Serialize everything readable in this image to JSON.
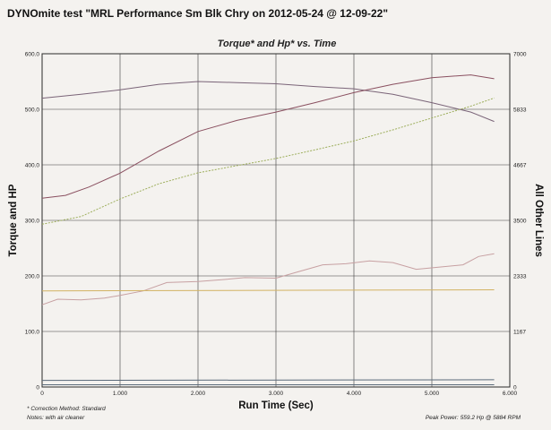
{
  "page_title": "DYNOmite test \"MRL Performance Sm Blk Chry on 2012-05-24 @ 12-09-22\"",
  "footnotes": {
    "correction": "* Correction Method: Standard",
    "notes": "Notes:  with air cleaner",
    "peak_power_label": "Peak Power:",
    "peak_power_value": "559.2 Hp @ 5884 RPM"
  },
  "colors": {
    "background": "#f4f2ef",
    "grid": "#3a3a3a",
    "torque": "#7a6478",
    "hp": "#8a5060",
    "rpm": "#9cad5a",
    "afr": "#c7a0a2",
    "flat": "#d2b262",
    "bottom": "#5a6a7a"
  },
  "chart_data": {
    "type": "line",
    "title": "Torque* and Hp* vs. Time",
    "xlabel": "Run Time (Sec)",
    "ylabel": "Torque and HP",
    "y2label": "All Other Lines",
    "xlim": [
      0,
      6
    ],
    "ylim": [
      0,
      600
    ],
    "y2lim": [
      0,
      7000
    ],
    "grid": true,
    "x_ticks": [
      "0",
      "1.000",
      "2.000",
      "3.000",
      "4.000",
      "5.000",
      "6.000"
    ],
    "y_ticks": [
      "0",
      "100.0",
      "200.0",
      "300.0",
      "400.0",
      "500.0",
      "600.0"
    ],
    "y2_ticks": [
      "0",
      "1167",
      "2333",
      "3500",
      "4667",
      "5833",
      "7000"
    ],
    "series": [
      {
        "name": "",
        "axis": "left",
        "color_key": "torque",
        "x": [
          0,
          0.5,
          1.0,
          1.5,
          2.0,
          2.5,
          3.0,
          3.5,
          4.0,
          4.5,
          5.0,
          5.5,
          5.8
        ],
        "y": [
          520,
          527,
          535,
          545,
          550,
          548,
          546,
          541,
          537,
          527,
          512,
          495,
          478
        ]
      },
      {
        "name": "",
        "axis": "left",
        "color_key": "hp",
        "x": [
          0,
          0.3,
          0.6,
          1.0,
          1.5,
          2.0,
          2.5,
          3.0,
          3.5,
          4.0,
          4.5,
          5.0,
          5.5,
          5.8
        ],
        "y": [
          340,
          345,
          360,
          385,
          425,
          460,
          480,
          495,
          512,
          530,
          545,
          557,
          562,
          555
        ]
      },
      {
        "name": "",
        "axis": "right",
        "color_key": "rpm",
        "x": [
          0,
          0.5,
          1.0,
          1.5,
          2.0,
          2.5,
          3.0,
          3.5,
          4.0,
          4.5,
          5.0,
          5.5,
          5.8
        ],
        "y": [
          3420,
          3580,
          3950,
          4270,
          4500,
          4650,
          4800,
          4980,
          5170,
          5400,
          5650,
          5900,
          6070
        ]
      },
      {
        "name": "",
        "axis": "left",
        "color_key": "afr",
        "x": [
          0,
          0.2,
          0.5,
          0.8,
          1.0,
          1.3,
          1.6,
          2.0,
          2.3,
          2.6,
          3.0,
          3.3,
          3.6,
          3.9,
          4.2,
          4.5,
          4.8,
          5.1,
          5.4,
          5.6,
          5.8
        ],
        "y": [
          148,
          158,
          157,
          160,
          165,
          173,
          188,
          190,
          193,
          197,
          196,
          208,
          220,
          222,
          227,
          224,
          212,
          216,
          220,
          235,
          240
        ]
      },
      {
        "name": "",
        "axis": "left",
        "color_key": "flat",
        "x": [
          0,
          5.8
        ],
        "y": [
          173,
          175
        ]
      },
      {
        "name": "",
        "axis": "left",
        "color_key": "bottom",
        "x": [
          0,
          5.8
        ],
        "y": [
          4,
          4
        ]
      },
      {
        "name": "",
        "axis": "left",
        "color_key": "bottom",
        "x": [
          0,
          5.8
        ],
        "y": [
          12,
          13
        ]
      }
    ]
  }
}
